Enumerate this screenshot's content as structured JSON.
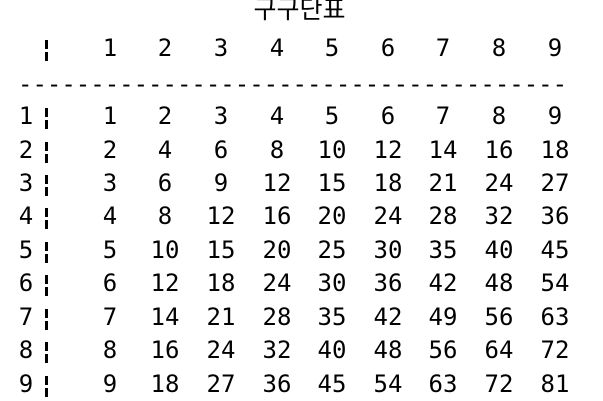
{
  "table": {
    "title": "구구단표",
    "column_headers": [
      "1",
      "2",
      "3",
      "4",
      "5",
      "6",
      "7",
      "8",
      "9"
    ],
    "divider": "---------------------------------------------",
    "separator_glyph": "¦",
    "rows": [
      {
        "label": "1",
        "values": [
          "1",
          "2",
          "3",
          "4",
          "5",
          "6",
          "7",
          "8",
          "9"
        ]
      },
      {
        "label": "2",
        "values": [
          "2",
          "4",
          "6",
          "8",
          "10",
          "12",
          "14",
          "16",
          "18"
        ]
      },
      {
        "label": "3",
        "values": [
          "3",
          "6",
          "9",
          "12",
          "15",
          "18",
          "21",
          "24",
          "27"
        ]
      },
      {
        "label": "4",
        "values": [
          "4",
          "8",
          "12",
          "16",
          "20",
          "24",
          "28",
          "32",
          "36"
        ]
      },
      {
        "label": "5",
        "values": [
          "5",
          "10",
          "15",
          "20",
          "25",
          "30",
          "35",
          "40",
          "45"
        ]
      },
      {
        "label": "6",
        "values": [
          "6",
          "12",
          "18",
          "24",
          "30",
          "36",
          "42",
          "48",
          "54"
        ]
      },
      {
        "label": "7",
        "values": [
          "7",
          "14",
          "21",
          "28",
          "35",
          "42",
          "49",
          "56",
          "63"
        ]
      },
      {
        "label": "8",
        "values": [
          "8",
          "16",
          "24",
          "32",
          "40",
          "48",
          "56",
          "64",
          "72"
        ]
      },
      {
        "label": "9",
        "values": [
          "9",
          "18",
          "27",
          "36",
          "45",
          "54",
          "63",
          "72",
          "81"
        ]
      }
    ]
  }
}
